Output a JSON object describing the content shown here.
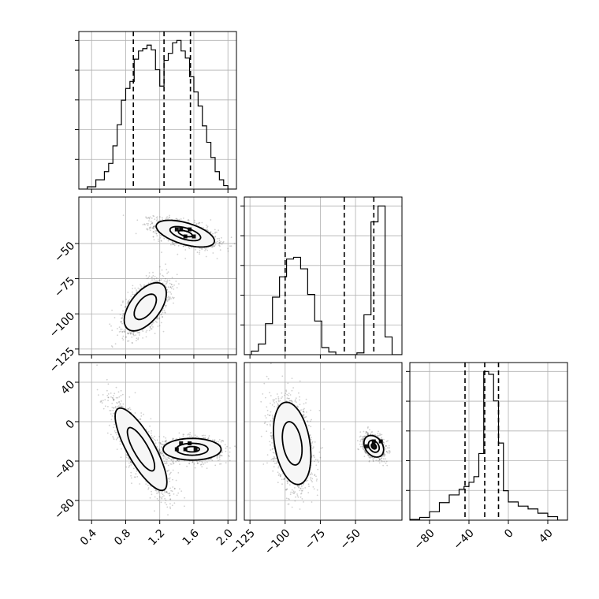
{
  "chart_data": {
    "type": "corner",
    "parameters": [
      {
        "range": [
          0.25,
          2.1
        ],
        "ticks": [
          0.4,
          0.8,
          1.2,
          1.6,
          2.0
        ],
        "tick_labels": [
          "0.4",
          "0.8",
          "1.2",
          "1.6",
          "2.0"
        ],
        "quantiles": [
          0.89,
          1.25,
          1.56
        ],
        "hist": {
          "bins": [
            0.25,
            0.35,
            0.45,
            0.55,
            0.6,
            0.65,
            0.7,
            0.75,
            0.8,
            0.85,
            0.9,
            0.95,
            1.0,
            1.05,
            1.1,
            1.15,
            1.2,
            1.25,
            1.3,
            1.35,
            1.4,
            1.45,
            1.5,
            1.55,
            1.6,
            1.65,
            1.7,
            1.75,
            1.8,
            1.85,
            1.9,
            1.95,
            2.0,
            2.1
          ],
          "counts": [
            0,
            2,
            8,
            15,
            22,
            37,
            55,
            76,
            86,
            92,
            111,
            118,
            120,
            123,
            119,
            102,
            88,
            110,
            116,
            125,
            127,
            118,
            112,
            96,
            83,
            71,
            54,
            40,
            27,
            15,
            8,
            3,
            0
          ]
        }
      },
      {
        "range": [
          -129,
          -17
        ],
        "ticks": [
          -125,
          -100,
          -75,
          -50
        ],
        "tick_labels": [
          "−125",
          "−100",
          "−75",
          "−50"
        ],
        "quantiles": [
          -100,
          -58,
          -37
        ],
        "hist": {
          "bins": [
            -129,
            -124,
            -119,
            -114,
            -109,
            -104,
            -99,
            -94,
            -89,
            -84,
            -79,
            -74,
            -69,
            -64,
            -59,
            -54,
            -49,
            -44,
            -39,
            -34,
            -29,
            -24,
            -17
          ],
          "counts": [
            0,
            4,
            12,
            35,
            65,
            88,
            108,
            110,
            97,
            68,
            38,
            8,
            3,
            0,
            0,
            0,
            2,
            45,
            150,
            168,
            20,
            0
          ]
        }
      },
      {
        "range": [
          -100,
          60
        ],
        "ticks": [
          -80,
          -40,
          0,
          40
        ],
        "tick_labels": [
          "−80",
          "−40",
          "0",
          "40"
        ],
        "quantiles": [
          -44,
          -24,
          -10
        ],
        "hist": {
          "bins": [
            -100,
            -90,
            -80,
            -70,
            -60,
            -50,
            -45,
            -40,
            -35,
            -30,
            -25,
            -20,
            -15,
            -10,
            -5,
            0,
            10,
            20,
            30,
            40,
            50,
            60
          ],
          "counts": [
            1,
            4,
            12,
            25,
            36,
            44,
            48,
            54,
            62,
            95,
            212,
            208,
            170,
            110,
            42,
            26,
            20,
            16,
            10,
            5,
            0
          ]
        }
      }
    ],
    "pairs": [
      {
        "x_param": 0,
        "y_param": 1,
        "clusters": [
          {
            "center": [
              1.5,
              -43
            ],
            "sd": [
              0.18,
              5.0
            ],
            "rho": -0.55,
            "n": 1500,
            "contours": [
              [
                0.05,
                0.7,
                0.45
              ],
              [
                0.14,
                1.5,
                1.0
              ],
              [
                0.23,
                2.4,
                1.9
              ]
            ],
            "dense_cells": [
              [
                1.45,
                -40
              ],
              [
                1.55,
                -40
              ],
              [
                1.5,
                -45
              ],
              [
                1.6,
                -45
              ],
              [
                1.4,
                -40
              ]
            ]
          },
          {
            "center": [
              1.03,
              -95
            ],
            "sd": [
              0.13,
              9.0
            ],
            "rho": 0.55,
            "n": 1500,
            "contours": [
              [
                0.14,
                1.5,
                1.0
              ],
              [
                0.23,
                2.4,
                1.9
              ]
            ],
            "dense_cells": []
          }
        ]
      },
      {
        "x_param": 0,
        "y_param": 2,
        "clusters": [
          {
            "center": [
              1.58,
              -28
            ],
            "sd": [
              0.17,
              5.5
            ],
            "rho": 0.0,
            "n": 1500,
            "contours": [
              [
                0.05,
                0.8,
                0.5
              ],
              [
                0.14,
                1.6,
                1.1
              ],
              [
                0.23,
                2.5,
                2.0
              ]
            ],
            "dense_cells": [
              [
                1.45,
                -22
              ],
              [
                1.55,
                -22
              ],
              [
                1.5,
                -28
              ],
              [
                1.62,
                -28
              ],
              [
                1.4,
                -28
              ]
            ]
          },
          {
            "center": [
              0.98,
              -28
            ],
            "sd": [
              0.16,
              22.0
            ],
            "rho": -0.8,
            "n": 1800,
            "contours": [
              [
                0.14,
                1.5,
                1.0
              ],
              [
                0.23,
                2.4,
                1.9
              ]
            ],
            "dense_cells": []
          }
        ]
      },
      {
        "x_param": 1,
        "y_param": 2,
        "clusters": [
          {
            "center": [
              -37,
              -25
            ],
            "sd": [
              3.5,
              5.5
            ],
            "rho": -0.3,
            "n": 1500,
            "contours": [
              [
                0.05,
                0.8,
                0.5
              ],
              [
                0.14,
                1.6,
                1.1
              ],
              [
                0.23,
                2.5,
                2.0
              ]
            ],
            "dense_cells": [
              [
                -37,
                -20
              ],
              [
                -32,
                -20
              ],
              [
                -42,
                -25
              ],
              [
                -37,
                -25
              ]
            ]
          },
          {
            "center": [
              -95,
              -22
            ],
            "sd": [
              7.0,
              22.0
            ],
            "rho": -0.3,
            "n": 1800,
            "contours": [
              [
                0.14,
                1.5,
                1.0
              ],
              [
                0.23,
                2.4,
                1.9
              ]
            ],
            "dense_cells": []
          }
        ]
      }
    ],
    "grid": true,
    "legend": "none"
  }
}
